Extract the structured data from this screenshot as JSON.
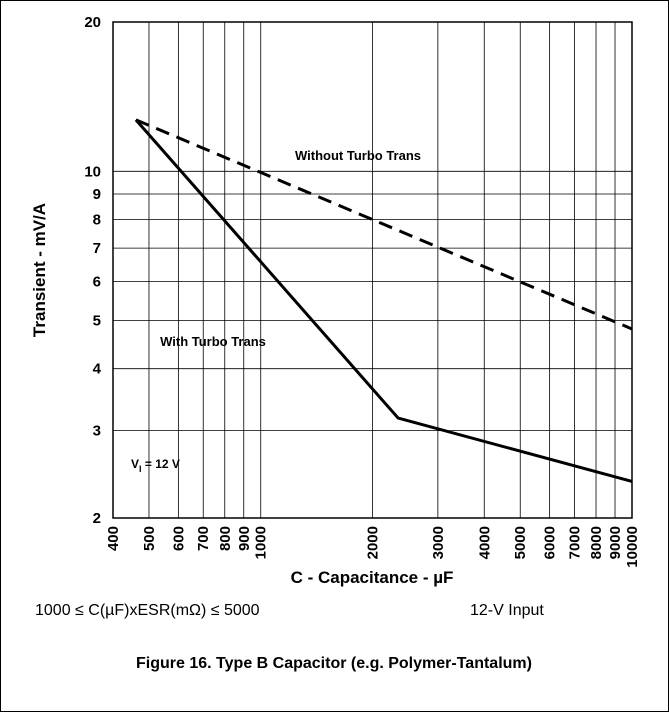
{
  "chart_data": {
    "type": "line",
    "title": "Figure 16. Type B Capacitor (e.g. Polymer-Tantalum)",
    "x_label": "C - Capacitance - µF",
    "y_label": "Transient - mV/A",
    "log_x": true,
    "log_y": true,
    "grid": true,
    "xlim": [
      400,
      10000
    ],
    "xticks": [
      400,
      500,
      600,
      700,
      800,
      900,
      1000,
      2000,
      3000,
      4000,
      5000,
      6000,
      7000,
      8000,
      9000,
      10000
    ],
    "ylim": [
      2,
      20
    ],
    "yticks": [
      2,
      3,
      4,
      5,
      6,
      7,
      8,
      9,
      10,
      20
    ],
    "series": [
      {
        "name": "Without Turbo Trans",
        "color": "#000000",
        "dashed": true,
        "x": [
          461,
          10000
        ],
        "values": [
          12.7,
          4.81
        ]
      },
      {
        "name": "With Turbo Trans",
        "color": "#000000",
        "dashed": false,
        "x": [
          461,
          2345,
          10000
        ],
        "values": [
          12.7,
          3.18,
          2.37
        ]
      }
    ],
    "annotation": {
      "main": "V",
      "sub": "I",
      "rest": " = 12 V"
    },
    "notes": [
      "1000 ≤ C(µF)xESR(mΩ) ≤ 5000",
      "12-V Input"
    ]
  }
}
